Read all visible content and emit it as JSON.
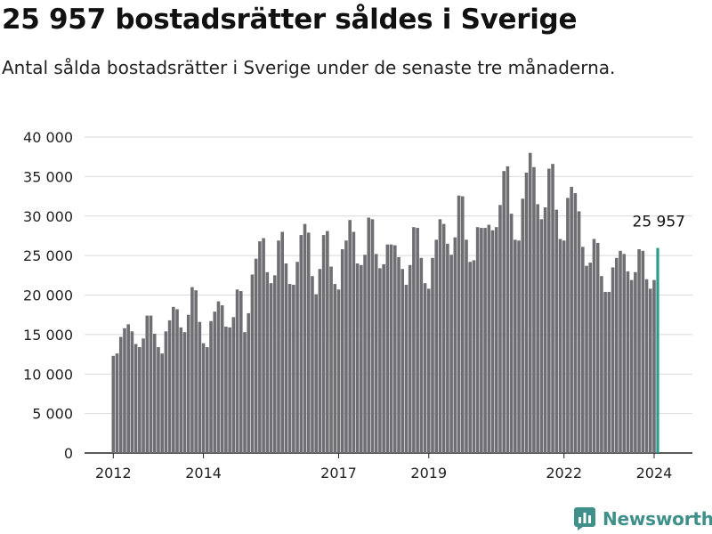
{
  "header": {
    "title": "25 957 bostadsrätter såldes i Sverige",
    "subtitle": "Antal sålda bostadsrätter i Sverige under de senaste tre månaderna."
  },
  "chart_data": {
    "type": "bar",
    "x_label": "",
    "y_label": "",
    "y_range": [
      0,
      40000
    ],
    "y_ticks": [
      0,
      5000,
      10000,
      15000,
      20000,
      25000,
      30000,
      35000,
      40000
    ],
    "y_tick_labels": [
      "0",
      "5 000",
      "10 000",
      "15 000",
      "20 000",
      "25 000",
      "30 000",
      "35 000",
      "40 000"
    ],
    "x_ticks": [
      {
        "label": "2012",
        "year": 2012
      },
      {
        "label": "2014",
        "year": 2014
      },
      {
        "label": "2017",
        "year": 2017
      },
      {
        "label": "2019",
        "year": 2019
      },
      {
        "label": "2022",
        "year": 2022
      },
      {
        "label": "2024",
        "year": 2024
      }
    ],
    "first_period": "2012-01",
    "gridlines": true,
    "bar_color": "#6f6e73",
    "highlight_color": "#2a9d8f",
    "values": [
      12300,
      12600,
      14700,
      15800,
      16300,
      15400,
      13800,
      13400,
      14500,
      17400,
      17400,
      15100,
      13400,
      12600,
      15400,
      16800,
      18500,
      18200,
      15900,
      15300,
      17500,
      21000,
      20600,
      16600,
      13900,
      13400,
      16700,
      17900,
      19200,
      18700,
      16000,
      15900,
      17200,
      20700,
      20500,
      15300,
      17700,
      22600,
      24600,
      26800,
      27200,
      22900,
      21500,
      22500,
      26900,
      28000,
      24000,
      21400,
      21300,
      24200,
      27600,
      29000,
      27900,
      22400,
      20100,
      23300,
      27600,
      28100,
      23600,
      21400,
      20700,
      25800,
      26900,
      29500,
      28000,
      24000,
      23800,
      25100,
      29800,
      29600,
      25200,
      23400,
      23900,
      26400,
      26400,
      26300,
      24800,
      23300,
      21300,
      23800,
      28600,
      28500,
      24700,
      21500,
      20800,
      24700,
      27000,
      29600,
      29000,
      26500,
      25100,
      27300,
      32600,
      32500,
      27000,
      24200,
      24400,
      28600,
      28500,
      28500,
      28900,
      28200,
      28600,
      31400,
      35700,
      36300,
      30300,
      27000,
      26900,
      32200,
      35500,
      38000,
      36200,
      31500,
      29600,
      31100,
      36000,
      36600,
      30800,
      27100,
      26900,
      32300,
      33700,
      32900,
      30600,
      26100,
      23700,
      24100,
      27100,
      26600,
      22400,
      20400,
      20400,
      23500,
      24700,
      25600,
      25200,
      23000,
      21900,
      22900,
      25800,
      25600,
      22000,
      20800,
      21900,
      25957
    ],
    "annotations": [
      {
        "text": "25 957",
        "target": "last_bar"
      }
    ]
  },
  "brand": {
    "name": "Newsworthy"
  }
}
